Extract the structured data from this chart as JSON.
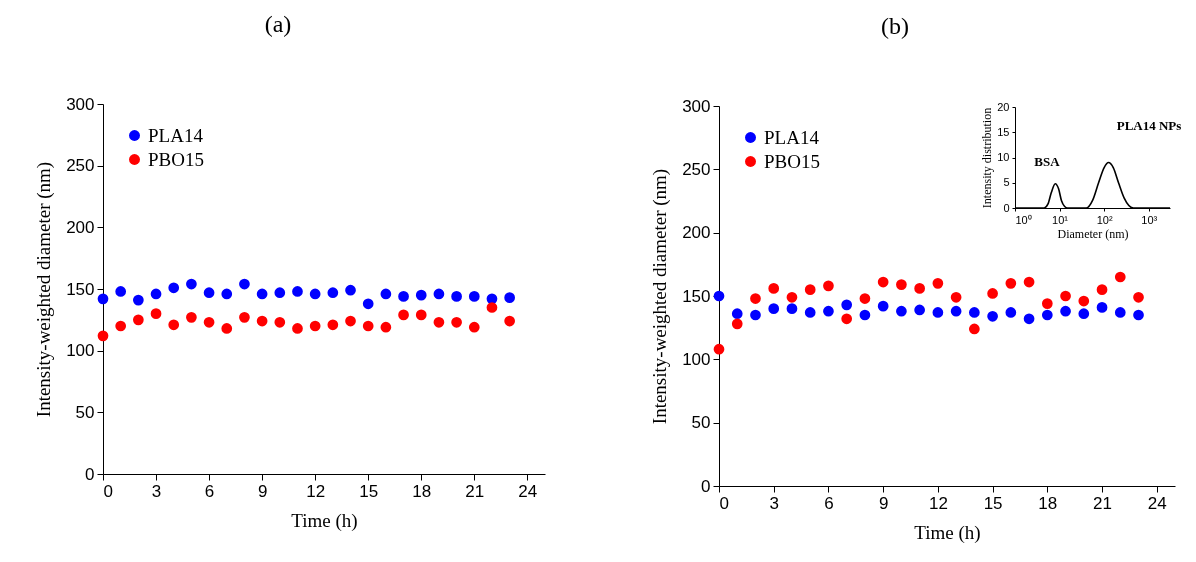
{
  "chart_data": [
    {
      "type": "scatter",
      "title": "(a)",
      "xlabel": "Time (h)",
      "ylabel": "Intensity-weighted diameter (nm)",
      "x": [
        0,
        1,
        2,
        3,
        4,
        5,
        6,
        7,
        8,
        9,
        10,
        11,
        12,
        13,
        14,
        15,
        16,
        17,
        18,
        19,
        20,
        21,
        22,
        23
      ],
      "xlim": [
        0,
        25
      ],
      "xticks": [
        0,
        3,
        6,
        9,
        12,
        15,
        18,
        21,
        24
      ],
      "ylim": [
        0,
        300
      ],
      "yticks": [
        0,
        50,
        100,
        150,
        200,
        250,
        300
      ],
      "legend": "top left",
      "marker": "circle",
      "series": [
        {
          "name": "PLA14",
          "color": "#0000ff",
          "values": [
            142,
            148,
            141,
            146,
            151,
            154,
            147,
            146,
            154,
            146,
            147,
            148,
            146,
            147,
            149,
            138,
            146,
            144,
            145,
            146,
            144,
            144,
            142,
            143
          ]
        },
        {
          "name": "PBO15",
          "color": "#ff0000",
          "values": [
            112,
            120,
            125,
            130,
            121,
            127,
            123,
            118,
            127,
            124,
            123,
            118,
            120,
            121,
            124,
            120,
            119,
            129,
            129,
            123,
            123,
            119,
            135,
            124
          ]
        }
      ]
    },
    {
      "type": "scatter",
      "title": "(b)",
      "xlabel": "Time (h)",
      "ylabel": "Intensity-weighted diameter (nm)",
      "x": [
        0,
        1,
        2,
        3,
        4,
        5,
        6,
        7,
        8,
        9,
        10,
        11,
        12,
        13,
        14,
        15,
        16,
        17,
        18,
        19,
        20,
        21,
        22,
        23
      ],
      "xlim": [
        0,
        25
      ],
      "xticks": [
        0,
        3,
        6,
        9,
        12,
        15,
        18,
        21,
        24
      ],
      "ylim": [
        0,
        300
      ],
      "yticks": [
        0,
        50,
        100,
        150,
        200,
        250,
        300
      ],
      "legend": "top left",
      "marker": "circle",
      "series": [
        {
          "name": "PLA14",
          "color": "#0000ff",
          "values": [
            150,
            136,
            135,
            140,
            140,
            137,
            138,
            143,
            135,
            142,
            138,
            139,
            137,
            138,
            137,
            134,
            137,
            132,
            135,
            138,
            136,
            141,
            137,
            135
          ]
        },
        {
          "name": "PBO15",
          "color": "#ff0000",
          "values": [
            108,
            128,
            148,
            156,
            149,
            155,
            158,
            132,
            148,
            161,
            159,
            156,
            160,
            149,
            124,
            152,
            160,
            161,
            144,
            150,
            146,
            155,
            165,
            149
          ]
        }
      ]
    },
    {
      "type": "line",
      "xlabel": "Diameter (nm)",
      "ylabel": "Intensity distribution",
      "log": "x",
      "xlim": [
        1,
        3000
      ],
      "xticks": [
        {
          "value": 1,
          "label": "10⁰"
        },
        {
          "value": 10,
          "label": "10¹"
        },
        {
          "value": 100,
          "label": "10²"
        },
        {
          "value": 1000,
          "label": "10³"
        }
      ],
      "ylim": [
        0,
        20
      ],
      "yticks": [
        0,
        5,
        10,
        15,
        20
      ],
      "line_style": "solid",
      "annotations": [
        "BSA",
        "PLA14 NPs"
      ],
      "series": [
        {
          "color": "#000000",
          "x": [
            1,
            4.5,
            5.5,
            6.5,
            8,
            9.5,
            11,
            13,
            15,
            40,
            55,
            75,
            100,
            125,
            160,
            210,
            280,
            450,
            3000
          ],
          "values": [
            0,
            0,
            0.8,
            3,
            4.8,
            3.8,
            1.5,
            0.3,
            0,
            0,
            1.5,
            5,
            8,
            9,
            8,
            5,
            2,
            0,
            0
          ]
        }
      ]
    }
  ]
}
